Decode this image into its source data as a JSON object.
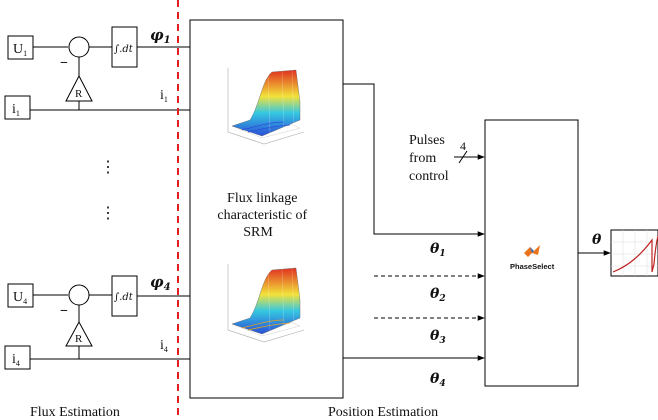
{
  "flux_estimation": {
    "section_label": "Flux Estimation",
    "inputs": {
      "u1": {
        "base": "U",
        "sub": "1"
      },
      "i1": {
        "base": "i",
        "sub": "1"
      },
      "u4": {
        "base": "U",
        "sub": "4"
      },
      "i4": {
        "base": "i",
        "sub": "4"
      }
    },
    "resistor_label": "R",
    "integrator_label": "∫.dt",
    "minus_sign": "−",
    "ellipsis": "⋮",
    "flux_outputs": {
      "phi1": {
        "base": "φ",
        "sub": "1"
      },
      "phi4": {
        "base": "φ",
        "sub": "4"
      }
    },
    "current_outputs": {
      "i1": {
        "base": "i",
        "sub": "1"
      },
      "i4": {
        "base": "i",
        "sub": "4"
      }
    }
  },
  "position_estimation": {
    "section_label": "Position Estimation",
    "flux_linkage_label_lines": [
      "Flux linkage",
      "characteristic of",
      "SRM"
    ],
    "pulses_label_lines": [
      "Pulses",
      "from",
      "control"
    ],
    "bus_width": "4",
    "theta_inputs": [
      {
        "base": "θ",
        "sub": "1",
        "style": "solid"
      },
      {
        "base": "θ",
        "sub": "2",
        "style": "dashed"
      },
      {
        "base": "θ",
        "sub": "3",
        "style": "dashed"
      },
      {
        "base": "θ",
        "sub": "4",
        "style": "solid"
      }
    ],
    "phase_select_label": "PhaseSelect",
    "output_label": "θ"
  },
  "colors": {
    "divider": "#e02020",
    "line": "#000000",
    "surface_low": "#2a4fd8",
    "surface_mid": "#35c8e0",
    "surface_mid2": "#f2e23a",
    "surface_high": "#e03020",
    "scope_trace": "#c02020",
    "matlab_logo": "#e8731a"
  }
}
